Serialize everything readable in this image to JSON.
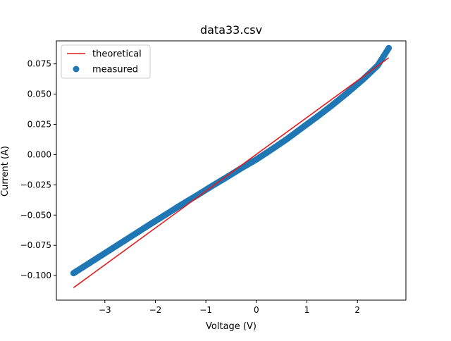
{
  "chart_data": {
    "type": "scatter",
    "title": "data33.csv",
    "xlabel": "Voltage (V)",
    "ylabel": "Current (A)",
    "xlim": [
      -3.96,
      2.96
    ],
    "ylim": [
      -0.1203,
      0.094
    ],
    "xticks": [
      -3,
      -2,
      -1,
      0,
      1,
      2
    ],
    "xtick_labels": [
      "−3",
      "−2",
      "−1",
      "0",
      "1",
      "2"
    ],
    "yticks": [
      -0.1,
      -0.075,
      -0.05,
      -0.025,
      0.0,
      0.025,
      0.05,
      0.075
    ],
    "ytick_labels": [
      "−0.100",
      "−0.075",
      "−0.050",
      "−0.025",
      "0.000",
      "0.025",
      "0.050",
      "0.075"
    ],
    "grid": false,
    "legend_position": "upper-left",
    "series": [
      {
        "name": "theoretical",
        "kind": "line",
        "color": "#e31a1c",
        "x": [
          -3.62,
          2.62
        ],
        "y": [
          -0.11,
          0.08
        ]
      },
      {
        "name": "measured",
        "kind": "scatter",
        "color": "#1f77b4",
        "x_range": [
          -3.62,
          2.62
        ],
        "x": [
          -3.62,
          -3.3,
          -3.0,
          -2.7,
          -2.4,
          -2.1,
          -1.8,
          -1.5,
          -1.2,
          -0.9,
          -0.6,
          -0.3,
          0.0,
          0.3,
          0.6,
          0.9,
          1.2,
          1.5,
          1.8,
          2.1,
          2.4,
          2.62
        ],
        "y": [
          -0.098,
          -0.0895,
          -0.0815,
          -0.0735,
          -0.0655,
          -0.0575,
          -0.0497,
          -0.0418,
          -0.0343,
          -0.0265,
          -0.019,
          -0.0113,
          -0.004,
          0.0042,
          0.0127,
          0.022,
          0.0312,
          0.0408,
          0.051,
          0.0617,
          0.0735,
          0.088
        ]
      }
    ]
  }
}
